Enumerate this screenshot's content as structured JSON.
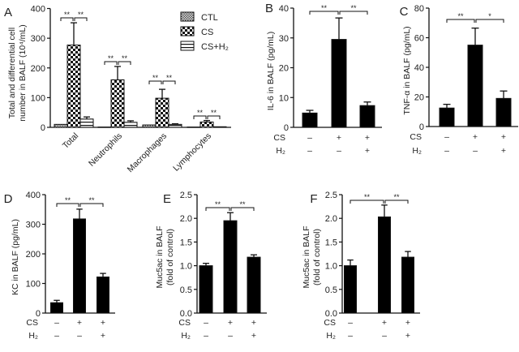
{
  "chart_data": [
    {
      "panel": "A",
      "type": "bar",
      "ylabel": [
        "Total and differential cell",
        "number in BALF (10⁴/mL)"
      ],
      "ylim": [
        0,
        400
      ],
      "yticks": [
        0,
        100,
        200,
        300,
        400
      ],
      "categories": [
        "Total",
        "Neutrophils",
        "Macrophages",
        "Lymphocytes"
      ],
      "legend": {
        "placement": "top-right",
        "entries": [
          "CTL",
          "CS",
          "CS+H₂"
        ]
      },
      "series": [
        {
          "name": "CTL",
          "values": [
            10,
            1,
            8,
            1
          ],
          "errors": [
            0,
            0,
            0,
            0
          ]
        },
        {
          "name": "CS",
          "values": [
            277,
            160,
            98,
            18
          ],
          "errors": [
            75,
            45,
            30,
            5
          ]
        },
        {
          "name": "CS+H₂",
          "values": [
            28,
            17,
            10,
            2
          ],
          "errors": [
            7,
            5,
            2,
            0
          ]
        }
      ],
      "significance": [
        [
          "**",
          "**"
        ],
        [
          "**",
          "**"
        ],
        [
          "**",
          "**"
        ],
        [
          "**",
          "**"
        ]
      ]
    },
    {
      "panel": "B",
      "type": "bar",
      "ylabel": "IL-6 in BALF (pg/mL)",
      "ylim": [
        0,
        40
      ],
      "yticks": [
        "0",
        "10",
        "20",
        "30",
        "40"
      ],
      "values": [
        4.8,
        29.5,
        7.3
      ],
      "errors": [
        0.9,
        7.2,
        1.2
      ],
      "significance": [
        "**",
        "**"
      ]
    },
    {
      "panel": "C",
      "type": "bar",
      "ylabel": "TNF-α in BALF (pg/mL)",
      "ylim": [
        0,
        80
      ],
      "yticks": [
        "0",
        "20",
        "40",
        "60",
        "80"
      ],
      "values": [
        12.5,
        55,
        19
      ],
      "errors": [
        2.5,
        11.5,
        5
      ],
      "significance": [
        "**",
        "*"
      ]
    },
    {
      "panel": "D",
      "type": "bar",
      "ylabel": "KC in BALF (pg/mL)",
      "ylim": [
        0,
        400
      ],
      "yticks": [
        "0",
        "100",
        "200",
        "300",
        "400"
      ],
      "values": [
        35,
        318,
        122
      ],
      "errors": [
        8,
        33,
        12
      ],
      "significance": [
        "**",
        "**"
      ]
    },
    {
      "panel": "E",
      "type": "bar",
      "ylabel": [
        "Muc5ac in BALF",
        "(fold of control)"
      ],
      "ylim": [
        0,
        2.5
      ],
      "yticks": [
        "0.0",
        "0.5",
        "1.0",
        "1.5",
        "2.0",
        "2.5"
      ],
      "values": [
        1.0,
        1.95,
        1.18
      ],
      "errors": [
        0.05,
        0.17,
        0.05
      ],
      "significance": [
        "**",
        "**"
      ]
    },
    {
      "panel": "F",
      "type": "bar",
      "ylabel": [
        "Muc5ac in BALF",
        "(fold of control)"
      ],
      "ylim": [
        0,
        2.5
      ],
      "yticks": [
        "0.0",
        "0.5",
        "1.0",
        "1.5",
        "2.0",
        "2.5"
      ],
      "values": [
        1.0,
        2.03,
        1.18
      ],
      "errors": [
        0.12,
        0.25,
        0.12
      ],
      "significance": [
        "**",
        "**"
      ]
    }
  ],
  "conditions": {
    "rows": [
      {
        "label": "CS",
        "signs": [
          "–",
          "+",
          "+"
        ]
      },
      {
        "label": "H₂",
        "signs": [
          "–",
          "–",
          "+"
        ]
      }
    ]
  }
}
